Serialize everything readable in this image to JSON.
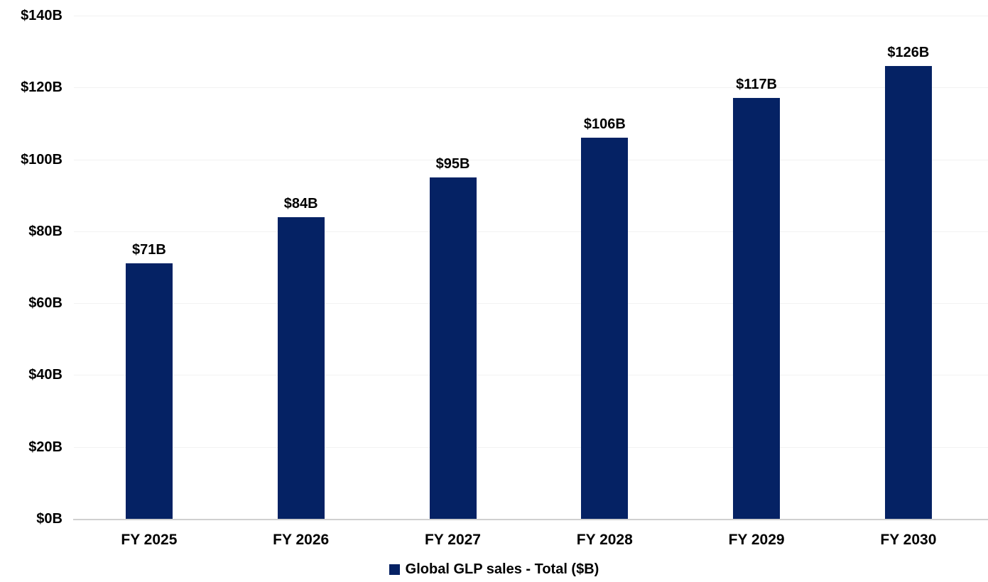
{
  "chart_data": {
    "type": "bar",
    "title": "",
    "xlabel": "",
    "ylabel": "",
    "categories": [
      "FY 2025",
      "FY 2026",
      "FY 2027",
      "FY 2028",
      "FY 2029",
      "FY 2030"
    ],
    "values": [
      71,
      84,
      95,
      106,
      117,
      126
    ],
    "value_labels": [
      "$71B",
      "$84B",
      "$95B",
      "$106B",
      "$117B",
      "$126B"
    ],
    "y_tick_labels": [
      "$0B",
      "$20B",
      "$40B",
      "$60B",
      "$80B",
      "$100B",
      "$120B",
      "$140B"
    ],
    "y_tick_values": [
      0,
      20,
      40,
      60,
      80,
      100,
      120,
      140
    ],
    "ylim": [
      0,
      140
    ],
    "grid": true,
    "legend": {
      "position": "bottom-center",
      "items": [
        {
          "label": "Global GLP sales - Total ($B)",
          "swatch_color": "#052264"
        }
      ]
    },
    "colors": {
      "bar": "#052264",
      "value_label_text": "#000000",
      "axis_text": "#000000",
      "gridline": "#F2F2F2",
      "axis_line": "#D0D0D0",
      "background": "#FFFFFF"
    }
  }
}
